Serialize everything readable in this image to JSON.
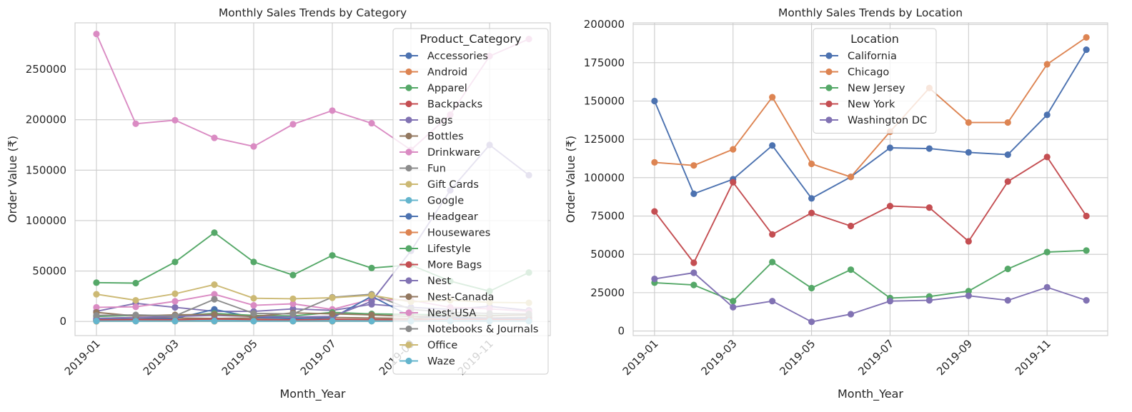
{
  "chart_data": [
    {
      "type": "line",
      "title": "Monthly Sales Trends by Category",
      "xlabel": "Month_Year",
      "ylabel": "Order Value (₹)",
      "x": [
        "2019-01",
        "2019-02",
        "2019-03",
        "2019-04",
        "2019-05",
        "2019-06",
        "2019-07",
        "2019-08",
        "2019-09",
        "2019-10",
        "2019-11",
        "2019-12"
      ],
      "xticks": [
        "2019-01",
        "2019-03",
        "2019-05",
        "2019-07",
        "2019-09",
        "2019-11"
      ],
      "ylim": [
        -14000,
        296000
      ],
      "yticks": [
        0,
        50000,
        100000,
        150000,
        200000,
        250000
      ],
      "grid": true,
      "legend": {
        "title": "Product_Category",
        "placement": "upper-right"
      },
      "series": [
        {
          "name": "Accessories",
          "color": "#4c72b0",
          "values": [
            500,
            600,
            700,
            800,
            600,
            500,
            700,
            800,
            500,
            600,
            800,
            700
          ]
        },
        {
          "name": "Android",
          "color": "#dd8452",
          "values": [
            600,
            500,
            600,
            700,
            500,
            600,
            500,
            600,
            700,
            600,
            500,
            600
          ]
        },
        {
          "name": "Apparel",
          "color": "#55a868",
          "values": [
            38500,
            38000,
            59000,
            88000,
            59000,
            46000,
            65500,
            53000,
            56000,
            40000,
            30000,
            48500
          ]
        },
        {
          "name": "Backpacks",
          "color": "#c44e52",
          "values": [
            1000,
            1200,
            1500,
            1300,
            1100,
            1000,
            1400,
            1600,
            1200,
            1300,
            1500,
            1400
          ]
        },
        {
          "name": "Bags",
          "color": "#8172b3",
          "values": [
            10000,
            18000,
            14000,
            10000,
            10000,
            12500,
            11000,
            17000,
            14000,
            12000,
            15000,
            11000
          ]
        },
        {
          "name": "Bottles",
          "color": "#937860",
          "values": [
            3000,
            4000,
            3500,
            3000,
            3500,
            3000,
            4000,
            3500,
            3000,
            4500,
            3500,
            4000
          ]
        },
        {
          "name": "Drinkware",
          "color": "#da8bc3",
          "values": [
            14000,
            14500,
            20000,
            27000,
            16000,
            17500,
            12000,
            22000,
            21000,
            14000,
            12500,
            10000
          ]
        },
        {
          "name": "Fun",
          "color": "#8c8c8c",
          "values": [
            1500,
            1200,
            1000,
            1400,
            1200,
            1100,
            1300,
            1500,
            1200,
            1000,
            1300,
            1200
          ]
        },
        {
          "name": "Gift Cards",
          "color": "#ccb974",
          "values": [
            200,
            300,
            250,
            200,
            300,
            250,
            200,
            300,
            250,
            200,
            300,
            250
          ]
        },
        {
          "name": "Google",
          "color": "#64b5cd",
          "values": [
            800,
            900,
            700,
            1000,
            800,
            900,
            700,
            800,
            900,
            1000,
            800,
            900
          ]
        },
        {
          "name": "Headgear",
          "color": "#4c72b0",
          "values": [
            2000,
            2500,
            3000,
            12000,
            4000,
            3000,
            3500,
            25000,
            5000,
            4000,
            3000,
            3500
          ]
        },
        {
          "name": "Housewares",
          "color": "#dd8452",
          "values": [
            300,
            400,
            350,
            300,
            400,
            350,
            300,
            400,
            350,
            300,
            400,
            350
          ]
        },
        {
          "name": "Lifestyle",
          "color": "#55a868",
          "values": [
            5000,
            6000,
            5500,
            8000,
            6000,
            5500,
            9000,
            7500,
            7000,
            6500,
            6000,
            6500
          ]
        },
        {
          "name": "More Bags",
          "color": "#c44e52",
          "values": [
            1500,
            2000,
            1800,
            2500,
            2000,
            1500,
            2200,
            2000,
            1800,
            2500,
            2200,
            2000
          ]
        },
        {
          "name": "Nest",
          "color": "#8172b3",
          "values": [
            3000,
            4000,
            5000,
            6000,
            5000,
            4500,
            5000,
            20000,
            70000,
            130000,
            175000,
            145000
          ]
        },
        {
          "name": "Nest-Canada",
          "color": "#937860",
          "values": [
            9000,
            5500,
            6500,
            7000,
            5000,
            8500,
            7500,
            6500,
            5000,
            6000,
            5500,
            6500
          ]
        },
        {
          "name": "Nest-USA",
          "color": "#da8bc3",
          "values": [
            285000,
            196000,
            199500,
            182000,
            173500,
            195500,
            209000,
            196500,
            170000,
            205000,
            263000,
            280000
          ]
        },
        {
          "name": "Notebooks & Journals",
          "color": "#8c8c8c",
          "values": [
            6000,
            6500,
            5500,
            22000,
            8000,
            7500,
            24000,
            27000,
            12000,
            9000,
            8000,
            7500
          ]
        },
        {
          "name": "Office",
          "color": "#ccb974",
          "values": [
            27000,
            21000,
            27500,
            36500,
            23000,
            22500,
            23500,
            26000,
            19500,
            21000,
            19000,
            18500
          ]
        },
        {
          "name": "Waze",
          "color": "#64b5cd",
          "values": [
            400,
            300,
            350,
            400,
            300,
            350,
            400,
            300,
            350,
            400,
            300,
            350
          ]
        }
      ]
    },
    {
      "type": "line",
      "title": "Monthly Sales Trends by Location",
      "xlabel": "Month_Year",
      "ylabel": "Order Value (₹)",
      "x": [
        "2019-01",
        "2019-02",
        "2019-03",
        "2019-04",
        "2019-05",
        "2019-06",
        "2019-07",
        "2019-08",
        "2019-09",
        "2019-10",
        "2019-11",
        "2019-12"
      ],
      "xticks": [
        "2019-01",
        "2019-03",
        "2019-05",
        "2019-07",
        "2019-09",
        "2019-11"
      ],
      "ylim": [
        -3000,
        201000
      ],
      "yticks": [
        0,
        25000,
        50000,
        75000,
        100000,
        125000,
        150000,
        175000,
        200000
      ],
      "grid": true,
      "legend": {
        "title": "Location",
        "placement": "upper-center"
      },
      "series": [
        {
          "name": "California",
          "color": "#4c72b0",
          "values": [
            150000,
            89500,
            99000,
            121000,
            86500,
            100500,
            119500,
            119000,
            116500,
            115000,
            141000,
            183500
          ]
        },
        {
          "name": "Chicago",
          "color": "#dd8452",
          "values": [
            110000,
            108000,
            118500,
            152500,
            109000,
            100500,
            130000,
            158500,
            136000,
            136000,
            174000,
            191500
          ]
        },
        {
          "name": "New Jersey",
          "color": "#55a868",
          "values": [
            31500,
            30000,
            19500,
            45000,
            28000,
            40000,
            21500,
            22500,
            26000,
            40500,
            51500,
            52500
          ]
        },
        {
          "name": "New York",
          "color": "#c44e52",
          "values": [
            78000,
            44500,
            97000,
            63000,
            77000,
            68500,
            81500,
            80500,
            58500,
            97500,
            113500,
            75000
          ]
        },
        {
          "name": "Washington DC",
          "color": "#8172b3",
          "values": [
            34000,
            38000,
            15500,
            19500,
            6000,
            11000,
            19500,
            20000,
            23000,
            20000,
            28500,
            20000
          ]
        }
      ]
    }
  ]
}
